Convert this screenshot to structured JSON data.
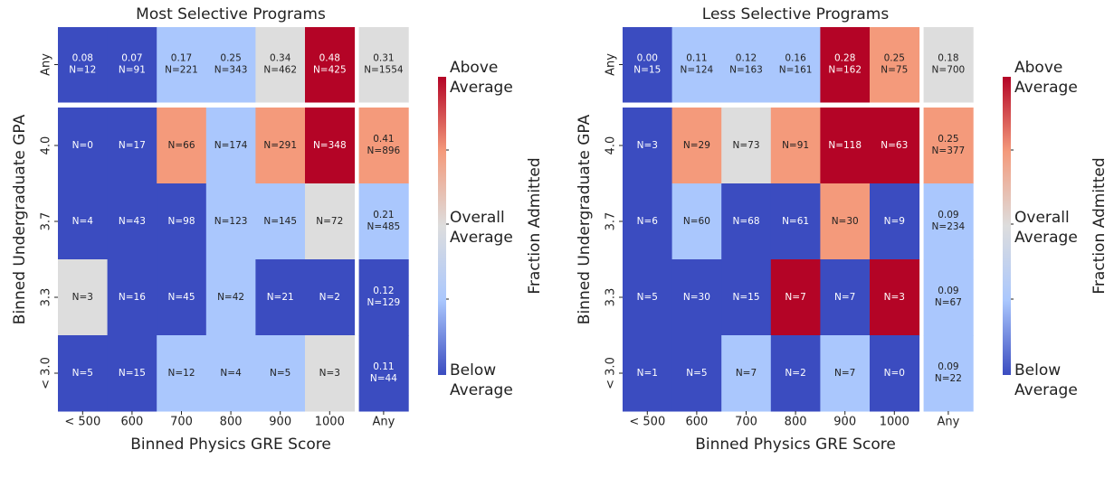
{
  "chart_data": [
    {
      "type": "heatmap",
      "title": "Most Selective Programs",
      "xlabel": "Binned Physics GRE Score",
      "ylabel": "Binned Undergraduate GPA",
      "x_categories": [
        "< 500",
        "600",
        "700",
        "800",
        "900",
        "1000",
        "Any"
      ],
      "y_categories": [
        "Any",
        "4.0",
        "3.7",
        "3.3",
        "< 3.0"
      ],
      "counts": [
        [
          12,
          91,
          221,
          343,
          462,
          425,
          1554
        ],
        [
          0,
          17,
          66,
          174,
          291,
          348,
          896
        ],
        [
          4,
          43,
          98,
          123,
          145,
          72,
          485
        ],
        [
          3,
          16,
          45,
          42,
          21,
          2,
          129
        ],
        [
          5,
          15,
          12,
          4,
          5,
          3,
          44
        ]
      ],
      "count_labels": [
        [
          "N=12",
          "N=91",
          "N=221",
          "N=343",
          "N=462",
          "N=425",
          "N=1554"
        ],
        [
          "N=0",
          "N=17",
          "N=66",
          "N=174",
          "N=291",
          "N=348",
          "N=896"
        ],
        [
          "N=4",
          "N=43",
          "N=98",
          "N=123",
          "N=145",
          "N=72",
          "N=485"
        ],
        [
          "N=3",
          "N=16",
          "N=45",
          "N=42",
          "N=21",
          "N=2",
          "N=129"
        ],
        [
          "N=5",
          "N=15",
          "N=12",
          "N=4",
          "N=5",
          "N=3",
          "N=44"
        ]
      ],
      "fractions": [
        [
          0.08,
          0.07,
          0.17,
          0.25,
          0.34,
          0.48,
          0.31
        ],
        [
          null,
          null,
          null,
          null,
          null,
          null,
          0.41
        ],
        [
          null,
          null,
          null,
          null,
          null,
          null,
          0.21
        ],
        [
          null,
          null,
          null,
          null,
          null,
          null,
          0.12
        ],
        [
          null,
          null,
          null,
          null,
          null,
          null,
          0.11
        ]
      ],
      "value_labels": [
        [
          "0.08",
          "0.07",
          "0.17",
          "0.25",
          "0.34",
          "0.48",
          "0.31"
        ],
        [
          null,
          null,
          null,
          null,
          null,
          null,
          "0.41"
        ],
        [
          null,
          null,
          null,
          null,
          null,
          null,
          "0.21"
        ],
        [
          null,
          null,
          null,
          null,
          null,
          null,
          "0.12"
        ],
        [
          null,
          null,
          null,
          null,
          null,
          null,
          "0.11"
        ]
      ],
      "cell_colors": [
        [
          "#3b4cc0",
          "#3b4cc0",
          "#aac7fd",
          "#aac7fd",
          "#dddddd",
          "#b40426",
          "#dddddd"
        ],
        [
          "#3b4cc0",
          "#3b4cc0",
          "#f49a7b",
          "#aac7fd",
          "#f49a7b",
          "#b40426",
          "#f49a7b"
        ],
        [
          "#3b4cc0",
          "#3b4cc0",
          "#3b4cc0",
          "#aac7fd",
          "#aac7fd",
          "#dddddd",
          "#aac7fd"
        ],
        [
          "#dddddd",
          "#3b4cc0",
          "#3b4cc0",
          "#aac7fd",
          "#3b4cc0",
          "#3b4cc0",
          "#3b4cc0"
        ],
        [
          "#3b4cc0",
          "#3b4cc0",
          "#aac7fd",
          "#aac7fd",
          "#aac7fd",
          "#dddddd",
          "#3b4cc0"
        ]
      ],
      "colorbar_label": "Fraction Admitted",
      "colorbar_labels": [
        [
          "Above",
          "Average"
        ],
        [
          "Overall",
          "Average"
        ],
        [
          "Below",
          "Average"
        ]
      ],
      "colorbar_colors": [
        "#b40426",
        "#f49a7b",
        "#dddddd",
        "#aac7fd",
        "#3b4cc0"
      ]
    },
    {
      "type": "heatmap",
      "title": "Less Selective Programs",
      "xlabel": "Binned Physics GRE Score",
      "ylabel": "Binned Undergraduate GPA",
      "x_categories": [
        "< 500",
        "600",
        "700",
        "800",
        "900",
        "1000",
        "Any"
      ],
      "y_categories": [
        "Any",
        "4.0",
        "3.7",
        "3.3",
        "< 3.0"
      ],
      "counts": [
        [
          15,
          124,
          163,
          161,
          162,
          75,
          700
        ],
        [
          3,
          29,
          73,
          91,
          118,
          63,
          377
        ],
        [
          6,
          60,
          68,
          61,
          30,
          9,
          234
        ],
        [
          5,
          30,
          15,
          7,
          7,
          3,
          67
        ],
        [
          1,
          5,
          7,
          2,
          7,
          0,
          22
        ]
      ],
      "count_labels": [
        [
          "N=15",
          "N=124",
          "N=163",
          "N=161",
          "N=162",
          "N=75",
          "N=700"
        ],
        [
          "N=3",
          "N=29",
          "N=73",
          "N=91",
          "N=118",
          "N=63",
          "N=377"
        ],
        [
          "N=6",
          "N=60",
          "N=68",
          "N=61",
          "N=30",
          "N=9",
          "N=234"
        ],
        [
          "N=5",
          "N=30",
          "N=15",
          "N=7",
          "N=7",
          "N=3",
          "N=67"
        ],
        [
          "N=1",
          "N=5",
          "N=7",
          "N=2",
          "N=7",
          "N=0",
          "N=22"
        ]
      ],
      "fractions": [
        [
          0.0,
          0.11,
          0.12,
          0.16,
          0.28,
          0.25,
          0.18
        ],
        [
          null,
          null,
          null,
          null,
          null,
          null,
          0.25
        ],
        [
          null,
          null,
          null,
          null,
          null,
          null,
          0.09
        ],
        [
          null,
          null,
          null,
          null,
          null,
          null,
          0.09
        ],
        [
          null,
          null,
          null,
          null,
          null,
          null,
          0.09
        ]
      ],
      "value_labels": [
        [
          "0.00",
          "0.11",
          "0.12",
          "0.16",
          "0.28",
          "0.25",
          "0.18"
        ],
        [
          null,
          null,
          null,
          null,
          null,
          null,
          "0.25"
        ],
        [
          null,
          null,
          null,
          null,
          null,
          null,
          "0.09"
        ],
        [
          null,
          null,
          null,
          null,
          null,
          null,
          "0.09"
        ],
        [
          null,
          null,
          null,
          null,
          null,
          null,
          "0.09"
        ]
      ],
      "cell_colors": [
        [
          "#3b4cc0",
          "#aac7fd",
          "#aac7fd",
          "#aac7fd",
          "#b40426",
          "#f49a7b",
          "#dddddd"
        ],
        [
          "#3b4cc0",
          "#f49a7b",
          "#dddddd",
          "#f49a7b",
          "#b40426",
          "#b40426",
          "#f49a7b"
        ],
        [
          "#3b4cc0",
          "#aac7fd",
          "#3b4cc0",
          "#3b4cc0",
          "#f49a7b",
          "#3b4cc0",
          "#aac7fd"
        ],
        [
          "#3b4cc0",
          "#3b4cc0",
          "#3b4cc0",
          "#b40426",
          "#3b4cc0",
          "#b40426",
          "#aac7fd"
        ],
        [
          "#3b4cc0",
          "#3b4cc0",
          "#aac7fd",
          "#3b4cc0",
          "#aac7fd",
          "#3b4cc0",
          "#aac7fd"
        ]
      ],
      "colorbar_label": "Fraction Admitted",
      "colorbar_labels": [
        [
          "Above",
          "Average"
        ],
        [
          "Overall",
          "Average"
        ],
        [
          "Below",
          "Average"
        ]
      ],
      "colorbar_colors": [
        "#b40426",
        "#f49a7b",
        "#dddddd",
        "#aac7fd",
        "#3b4cc0"
      ]
    }
  ]
}
